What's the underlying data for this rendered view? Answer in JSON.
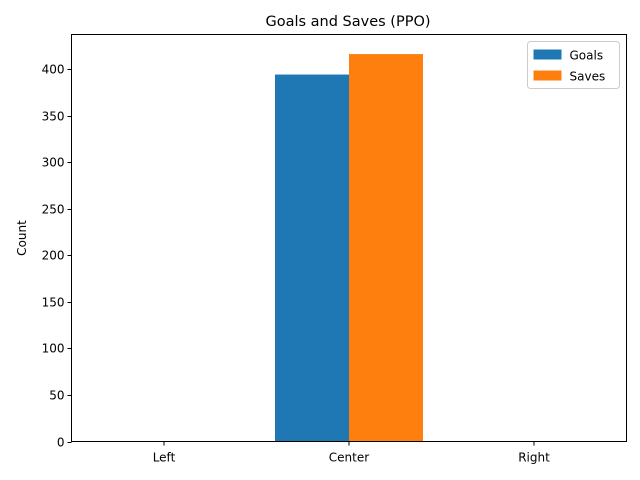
{
  "chart_data": {
    "type": "bar",
    "title": "Goals and Saves (PPO)",
    "xlabel": "",
    "ylabel": "Count",
    "categories": [
      "Left",
      "Center",
      "Right"
    ],
    "series": [
      {
        "name": "Goals",
        "values": [
          0,
          394,
          0
        ],
        "color": "#1f77b4"
      },
      {
        "name": "Saves",
        "values": [
          0,
          416,
          0
        ],
        "color": "#ff7f0e"
      }
    ],
    "ylim": [
      0,
      437
    ],
    "yticks": [
      0,
      50,
      100,
      150,
      200,
      250,
      300,
      350,
      400
    ],
    "grid": false,
    "legend": "top-right"
  }
}
